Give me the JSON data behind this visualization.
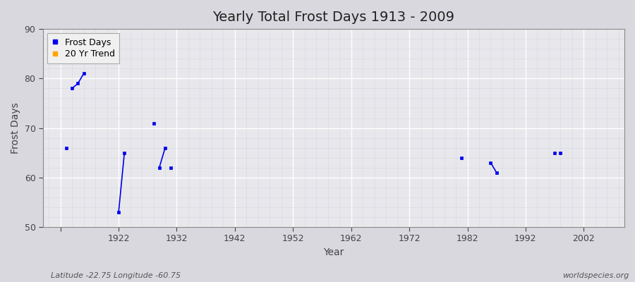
{
  "title": "Yearly Total Frost Days 1913 - 2009",
  "xlabel": "Year",
  "ylabel": "Frost Days",
  "xlim": [
    1909,
    2009
  ],
  "ylim": [
    50,
    90
  ],
  "yticks": [
    50,
    60,
    70,
    80,
    90
  ],
  "xticks": [
    1912,
    1922,
    1932,
    1942,
    1952,
    1962,
    1972,
    1982,
    1992,
    2002
  ],
  "xtick_labels": [
    "",
    "1922",
    "1932",
    "1942",
    "1952",
    "1962",
    "1972",
    "1982",
    "1992",
    "2002"
  ],
  "groups": [
    {
      "years": [
        1913
      ],
      "values": [
        66
      ]
    },
    {
      "years": [
        1914,
        1915,
        1916
      ],
      "values": [
        78,
        79,
        81
      ]
    },
    {
      "years": [
        1922,
        1923
      ],
      "values": [
        53,
        65
      ]
    },
    {
      "years": [
        1928
      ],
      "values": [
        71
      ]
    },
    {
      "years": [
        1929,
        1930
      ],
      "values": [
        62,
        66
      ]
    },
    {
      "years": [
        1931
      ],
      "values": [
        62
      ]
    },
    {
      "years": [
        1981
      ],
      "values": [
        64
      ]
    },
    {
      "years": [
        1986,
        1987
      ],
      "values": [
        63,
        61
      ]
    },
    {
      "years": [
        1997
      ],
      "values": [
        65
      ]
    },
    {
      "years": [
        1998
      ],
      "values": [
        65
      ]
    }
  ],
  "line_color": "#0000ee",
  "plot_bg_color": "#e8e8ec",
  "outer_bg_color": "#d8d8de",
  "grid_major_color": "#ffffff",
  "grid_minor_color": "#ccccdd",
  "annotation_lat": "Latitude -22.75 Longitude -60.75",
  "annotation_web": "worldspecies.org",
  "legend_frost_label": "Frost Days",
  "legend_trend_label": "20 Yr Trend",
  "legend_frost_color": "#0000ee",
  "legend_trend_color": "#ffa500",
  "title_fontsize": 14,
  "axis_label_fontsize": 10,
  "tick_fontsize": 9,
  "legend_fontsize": 9
}
